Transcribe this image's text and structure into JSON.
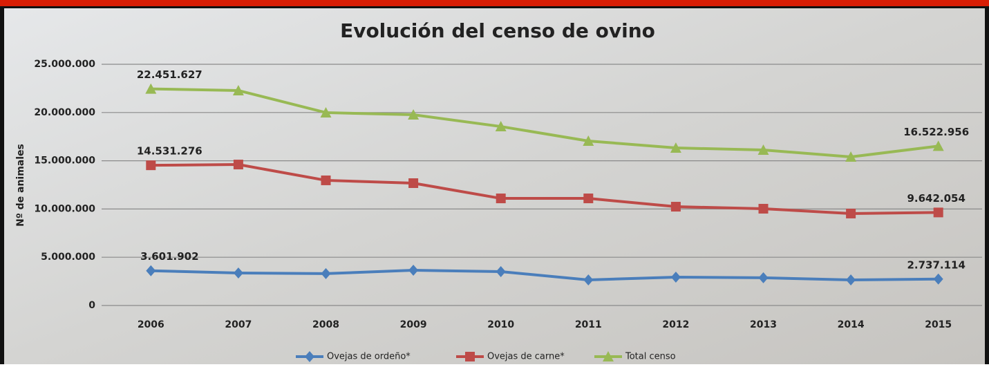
{
  "chart_data": {
    "type": "line",
    "title": "Evolución del censo de ovino",
    "y_label": "Nº de animales",
    "categories": [
      "2006",
      "2007",
      "2008",
      "2009",
      "2010",
      "2011",
      "2012",
      "2013",
      "2014",
      "2015"
    ],
    "series": [
      {
        "name": "Ovejas de ordeño*",
        "color": "#4a7ebb",
        "marker": "diamond",
        "values": [
          3601902,
          3370000,
          3300000,
          3650000,
          3510000,
          2650000,
          2940000,
          2870000,
          2650000,
          2737114
        ],
        "value_labels": [
          "3.601.902",
          null,
          null,
          null,
          null,
          null,
          null,
          null,
          null,
          "2.737.114"
        ]
      },
      {
        "name": "Ovejas de carne*",
        "color": "#be4b48",
        "marker": "square",
        "values": [
          14531276,
          14610000,
          12970000,
          12680000,
          11100000,
          11100000,
          10240000,
          10030000,
          9530000,
          9642054
        ],
        "value_labels": [
          "14.531.276",
          null,
          null,
          null,
          null,
          null,
          null,
          null,
          null,
          "9.642.054"
        ]
      },
      {
        "name": "Total censo",
        "color": "#98b954",
        "marker": "triangle",
        "values": [
          22451627,
          22280000,
          19990000,
          19770000,
          18550000,
          17050000,
          16330000,
          16120000,
          15400000,
          16522956
        ],
        "value_labels": [
          "22.451.627",
          null,
          null,
          null,
          null,
          null,
          null,
          null,
          null,
          "16.522.956"
        ]
      }
    ],
    "ylim": [
      0,
      25000000
    ],
    "yticks": [
      0,
      {
        "value": 5000000,
        "label": "5.000.000"
      },
      {
        "value": 10000000,
        "label": "10.000.000"
      },
      {
        "value": 15000000,
        "label": "15.000.000"
      },
      {
        "value": 20000000,
        "label": "20.000.000"
      },
      {
        "value": 25000000,
        "label": "25.000.000"
      }
    ],
    "grid": true,
    "legend": "bottom"
  }
}
